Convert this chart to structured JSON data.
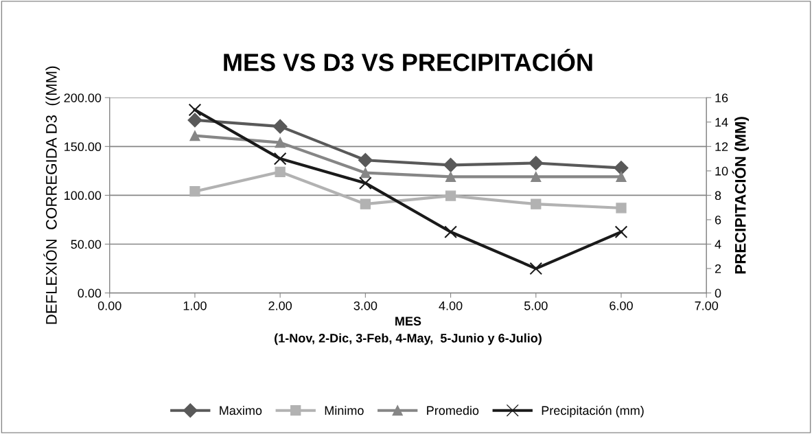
{
  "chart_data": {
    "type": "line",
    "title": "MES VS D3 VS PRECIPITACIÓN",
    "xlabel": "MES\n(1-Nov, 2-Dic, 3-Feb, 4-May,  5-Junio y 6-Julio)",
    "ylabel": "DEFLEXIÓN  CORREGIDA D3  ((MM)",
    "y2label": "PRECIPITACIÓN (MM)",
    "x": [
      1,
      2,
      3,
      4,
      5,
      6
    ],
    "series": [
      {
        "name": "Maximo",
        "color": "#595959",
        "marker": "diamond",
        "values": [
          177,
          170.5,
          136,
          131,
          133,
          128
        ]
      },
      {
        "name": "Minimo",
        "color": "#b2b2b2",
        "marker": "square",
        "values": [
          104,
          124,
          91,
          99.5,
          91,
          87
        ]
      },
      {
        "name": "Promedio",
        "color": "#868686",
        "marker": "triangle",
        "values": [
          161,
          154,
          123,
          119,
          119,
          119
        ]
      },
      {
        "name": "Precipitación (mm)",
        "color": "#1a1a1a",
        "marker": "cross",
        "axis": "y2",
        "values": [
          15,
          11,
          9,
          5,
          2,
          5
        ]
      }
    ],
    "xlim": [
      0,
      7
    ],
    "xticks": [
      {
        "value": 0,
        "label": "0.00"
      },
      {
        "value": 1,
        "label": "1.00"
      },
      {
        "value": 2,
        "label": "2.00"
      },
      {
        "value": 3,
        "label": "3.00"
      },
      {
        "value": 4,
        "label": "4.00"
      },
      {
        "value": 5,
        "label": "5.00"
      },
      {
        "value": 6,
        "label": "6.00"
      },
      {
        "value": 7,
        "label": "7.00"
      }
    ],
    "ylim": [
      0,
      200
    ],
    "yticks": [
      {
        "value": 0,
        "label": "0.00"
      },
      {
        "value": 50,
        "label": "50.00"
      },
      {
        "value": 100,
        "label": "100.00"
      },
      {
        "value": 150,
        "label": "150.00"
      },
      {
        "value": 200,
        "label": "200.00"
      }
    ],
    "y2lim": [
      0,
      16
    ],
    "y2ticks": [
      0,
      2,
      4,
      6,
      8,
      10,
      12,
      14,
      16
    ],
    "grid": "y",
    "legend": "bottom"
  }
}
